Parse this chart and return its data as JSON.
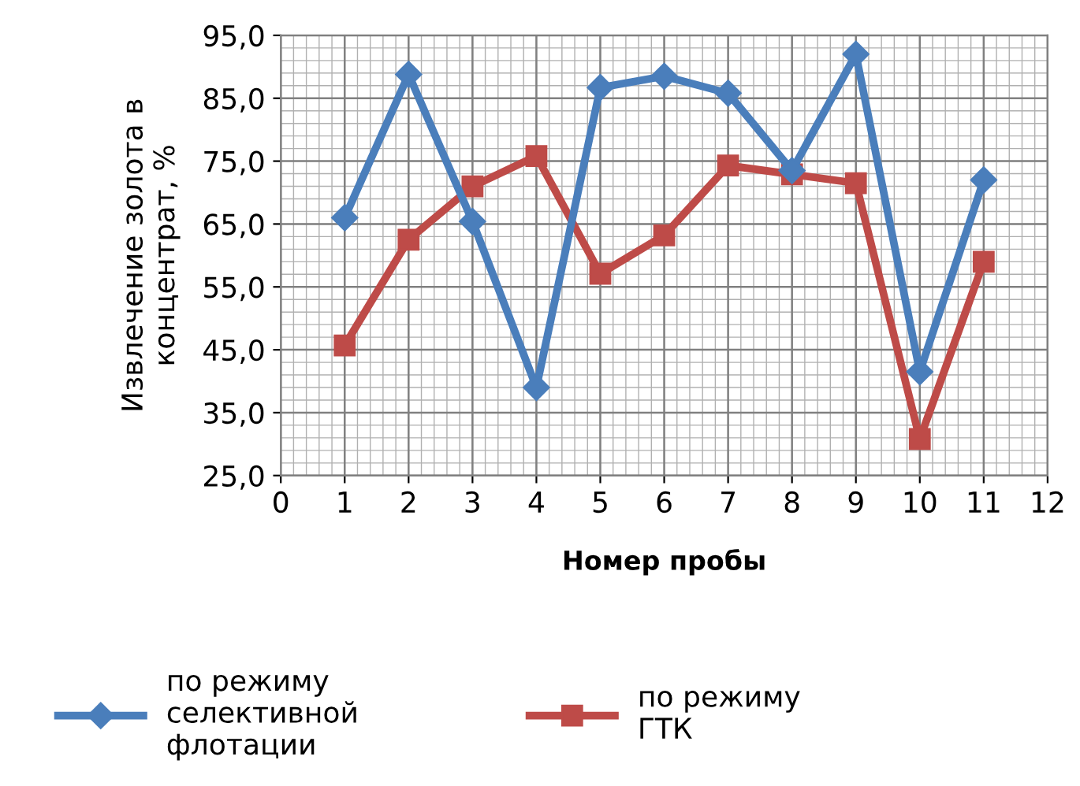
{
  "chart_data": {
    "type": "line",
    "xlabel": "Номер пробы",
    "ylabel": "Извлечение золота в\nконцентрат, %",
    "x": [
      1,
      2,
      3,
      4,
      5,
      6,
      7,
      8,
      9,
      10,
      11
    ],
    "series": [
      {
        "name": "по режиму\nселективной\nфлотации",
        "color": "#4a7ebb",
        "marker": "diamond",
        "values": [
          66,
          88.8,
          65.4,
          39,
          86.7,
          88.5,
          85.8,
          73.5,
          92,
          41.5,
          72
        ]
      },
      {
        "name": "по режиму\nГТК",
        "color": "#be4b48",
        "marker": "square",
        "values": [
          45.7,
          62.5,
          71,
          75.8,
          57.1,
          63.2,
          74.3,
          72.9,
          71.5,
          30.8,
          59
        ]
      }
    ],
    "xlim": [
      0,
      12
    ],
    "xticks": [
      0,
      1,
      2,
      3,
      4,
      5,
      6,
      7,
      8,
      9,
      10,
      11,
      12
    ],
    "ylim": [
      25,
      95
    ],
    "yticks": [
      {
        "value": 25,
        "label": "25,0"
      },
      {
        "value": 35,
        "label": "35,0"
      },
      {
        "value": 45,
        "label": "45,0"
      },
      {
        "value": 55,
        "label": "55,0"
      },
      {
        "value": 65,
        "label": "65,0"
      },
      {
        "value": 75,
        "label": "75,0"
      },
      {
        "value": 85,
        "label": "85,0"
      },
      {
        "value": 95,
        "label": "95,0"
      }
    ],
    "grid": true,
    "legend": "bottom",
    "line_style": "solid"
  }
}
